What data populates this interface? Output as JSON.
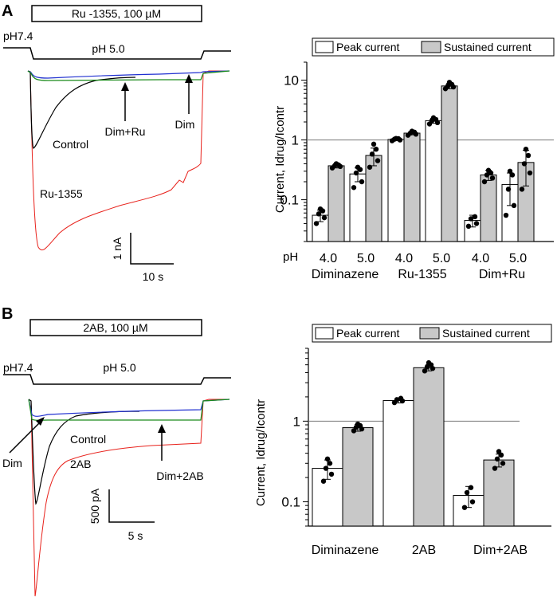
{
  "colors": {
    "control": "#000000",
    "ru1355": "#e8221c",
    "dim": "#2030d0",
    "dim_ru": "#1a8a1a",
    "sustained_fill": "#c8c8c8",
    "peak_fill": "#ffffff"
  },
  "panel_a": {
    "letter": "A",
    "drug_bar_label": "Ru -1355, 100 µM",
    "ph_initial": "pH7.4",
    "ph_step": "pH 5.0",
    "trace_labels": {
      "control": "Control",
      "ru": "Ru-1355",
      "dim_ru": "Dim+Ru",
      "dim": "Dim"
    },
    "scalebar": {
      "y_label": "1 nA",
      "x_label": "10 s"
    }
  },
  "panel_b": {
    "letter": "B",
    "drug_bar_label": "2AB, 100 µM",
    "ph_initial": "pH7.4",
    "ph_step": "pH 5.0",
    "trace_labels": {
      "dim": "Dim",
      "control": "Control",
      "twoab": "2AB",
      "dim_2ab": "Dim+2AB"
    },
    "scalebar": {
      "y_label": "500 pA",
      "x_label": "5 s"
    }
  },
  "chart_data": [
    {
      "type": "bar",
      "title": "",
      "ylabel": "Current, Idrug/Icontr",
      "yscale": "log",
      "ylim": [
        0.02,
        20
      ],
      "yticks": [
        "0.1",
        "1",
        "10"
      ],
      "reference_line": 1,
      "legend": [
        "Peak current",
        "Sustained current"
      ],
      "ph_label": "pH",
      "groups": [
        {
          "name": "Diminazene",
          "conditions": [
            {
              "ph": "4.0",
              "peak": 0.055,
              "peak_err": 0.012,
              "sustained": 0.37,
              "sustained_err": 0.03,
              "peak_points": [
                0.04,
                0.05,
                0.058,
                0.065,
                0.07
              ],
              "sustained_points": [
                0.34,
                0.36,
                0.37,
                0.38,
                0.4
              ]
            },
            {
              "ph": "5.0",
              "peak": 0.27,
              "peak_err": 0.07,
              "sustained": 0.55,
              "sustained_err": 0.18,
              "peak_points": [
                0.16,
                0.2,
                0.28,
                0.32,
                0.35
              ],
              "sustained_points": [
                0.35,
                0.45,
                0.58,
                0.7,
                0.85
              ]
            }
          ]
        },
        {
          "name": "Ru-1355",
          "conditions": [
            {
              "ph": "4.0",
              "peak": 1.02,
              "peak_err": 0.05,
              "sustained": 1.3,
              "sustained_err": 0.08,
              "peak_points": [
                0.97,
                1.0,
                1.03,
                1.05,
                1.06
              ],
              "sustained_points": [
                1.2,
                1.25,
                1.3,
                1.35,
                1.4
              ]
            },
            {
              "ph": "5.0",
              "peak": 2.1,
              "peak_err": 0.2,
              "sustained": 8.0,
              "sustained_err": 0.8,
              "peak_points": [
                1.85,
                1.95,
                2.1,
                2.2,
                2.35
              ],
              "sustained_points": [
                7.2,
                7.7,
                8.0,
                8.5,
                9.2
              ]
            }
          ]
        },
        {
          "name": "Dim+Ru",
          "conditions": [
            {
              "ph": "4.0",
              "peak": 0.045,
              "peak_err": 0.01,
              "sustained": 0.26,
              "sustained_err": 0.05,
              "peak_points": [
                0.036,
                0.04,
                0.048,
                0.052
              ],
              "sustained_points": [
                0.2,
                0.23,
                0.26,
                0.28,
                0.31
              ]
            },
            {
              "ph": "5.0",
              "peak": 0.18,
              "peak_err": 0.1,
              "sustained": 0.42,
              "sustained_err": 0.25,
              "peak_points": [
                0.055,
                0.08,
                0.15,
                0.26,
                0.3
              ],
              "sustained_points": [
                0.15,
                0.28,
                0.4,
                0.55,
                0.7
              ]
            }
          ]
        }
      ]
    },
    {
      "type": "bar",
      "title": "",
      "ylabel": "Current, Idrug/Icontr",
      "yscale": "log",
      "ylim": [
        0.05,
        8
      ],
      "yticks": [
        "0.1",
        "1"
      ],
      "reference_line": 1,
      "legend": [
        "Peak current",
        "Sustained current"
      ],
      "groups": [
        {
          "name": "Diminazene",
          "peak": 0.26,
          "peak_err": 0.07,
          "sustained": 0.83,
          "sustained_err": 0.08,
          "peak_points": [
            0.18,
            0.22,
            0.26,
            0.3,
            0.34
          ],
          "sustained_points": [
            0.76,
            0.8,
            0.84,
            0.88,
            0.92
          ]
        },
        {
          "name": "2AB",
          "peak": 1.8,
          "peak_err": 0.12,
          "sustained": 4.6,
          "sustained_err": 0.4,
          "peak_points": [
            1.7,
            1.78,
            1.85,
            1.92
          ],
          "sustained_points": [
            4.2,
            4.5,
            4.7,
            5.0,
            5.3
          ]
        },
        {
          "name": "Dim+2AB",
          "peak": 0.12,
          "peak_err": 0.035,
          "sustained": 0.33,
          "sustained_err": 0.06,
          "peak_points": [
            0.085,
            0.1,
            0.13,
            0.15
          ],
          "sustained_points": [
            0.26,
            0.3,
            0.34,
            0.38,
            0.42
          ]
        }
      ]
    }
  ]
}
